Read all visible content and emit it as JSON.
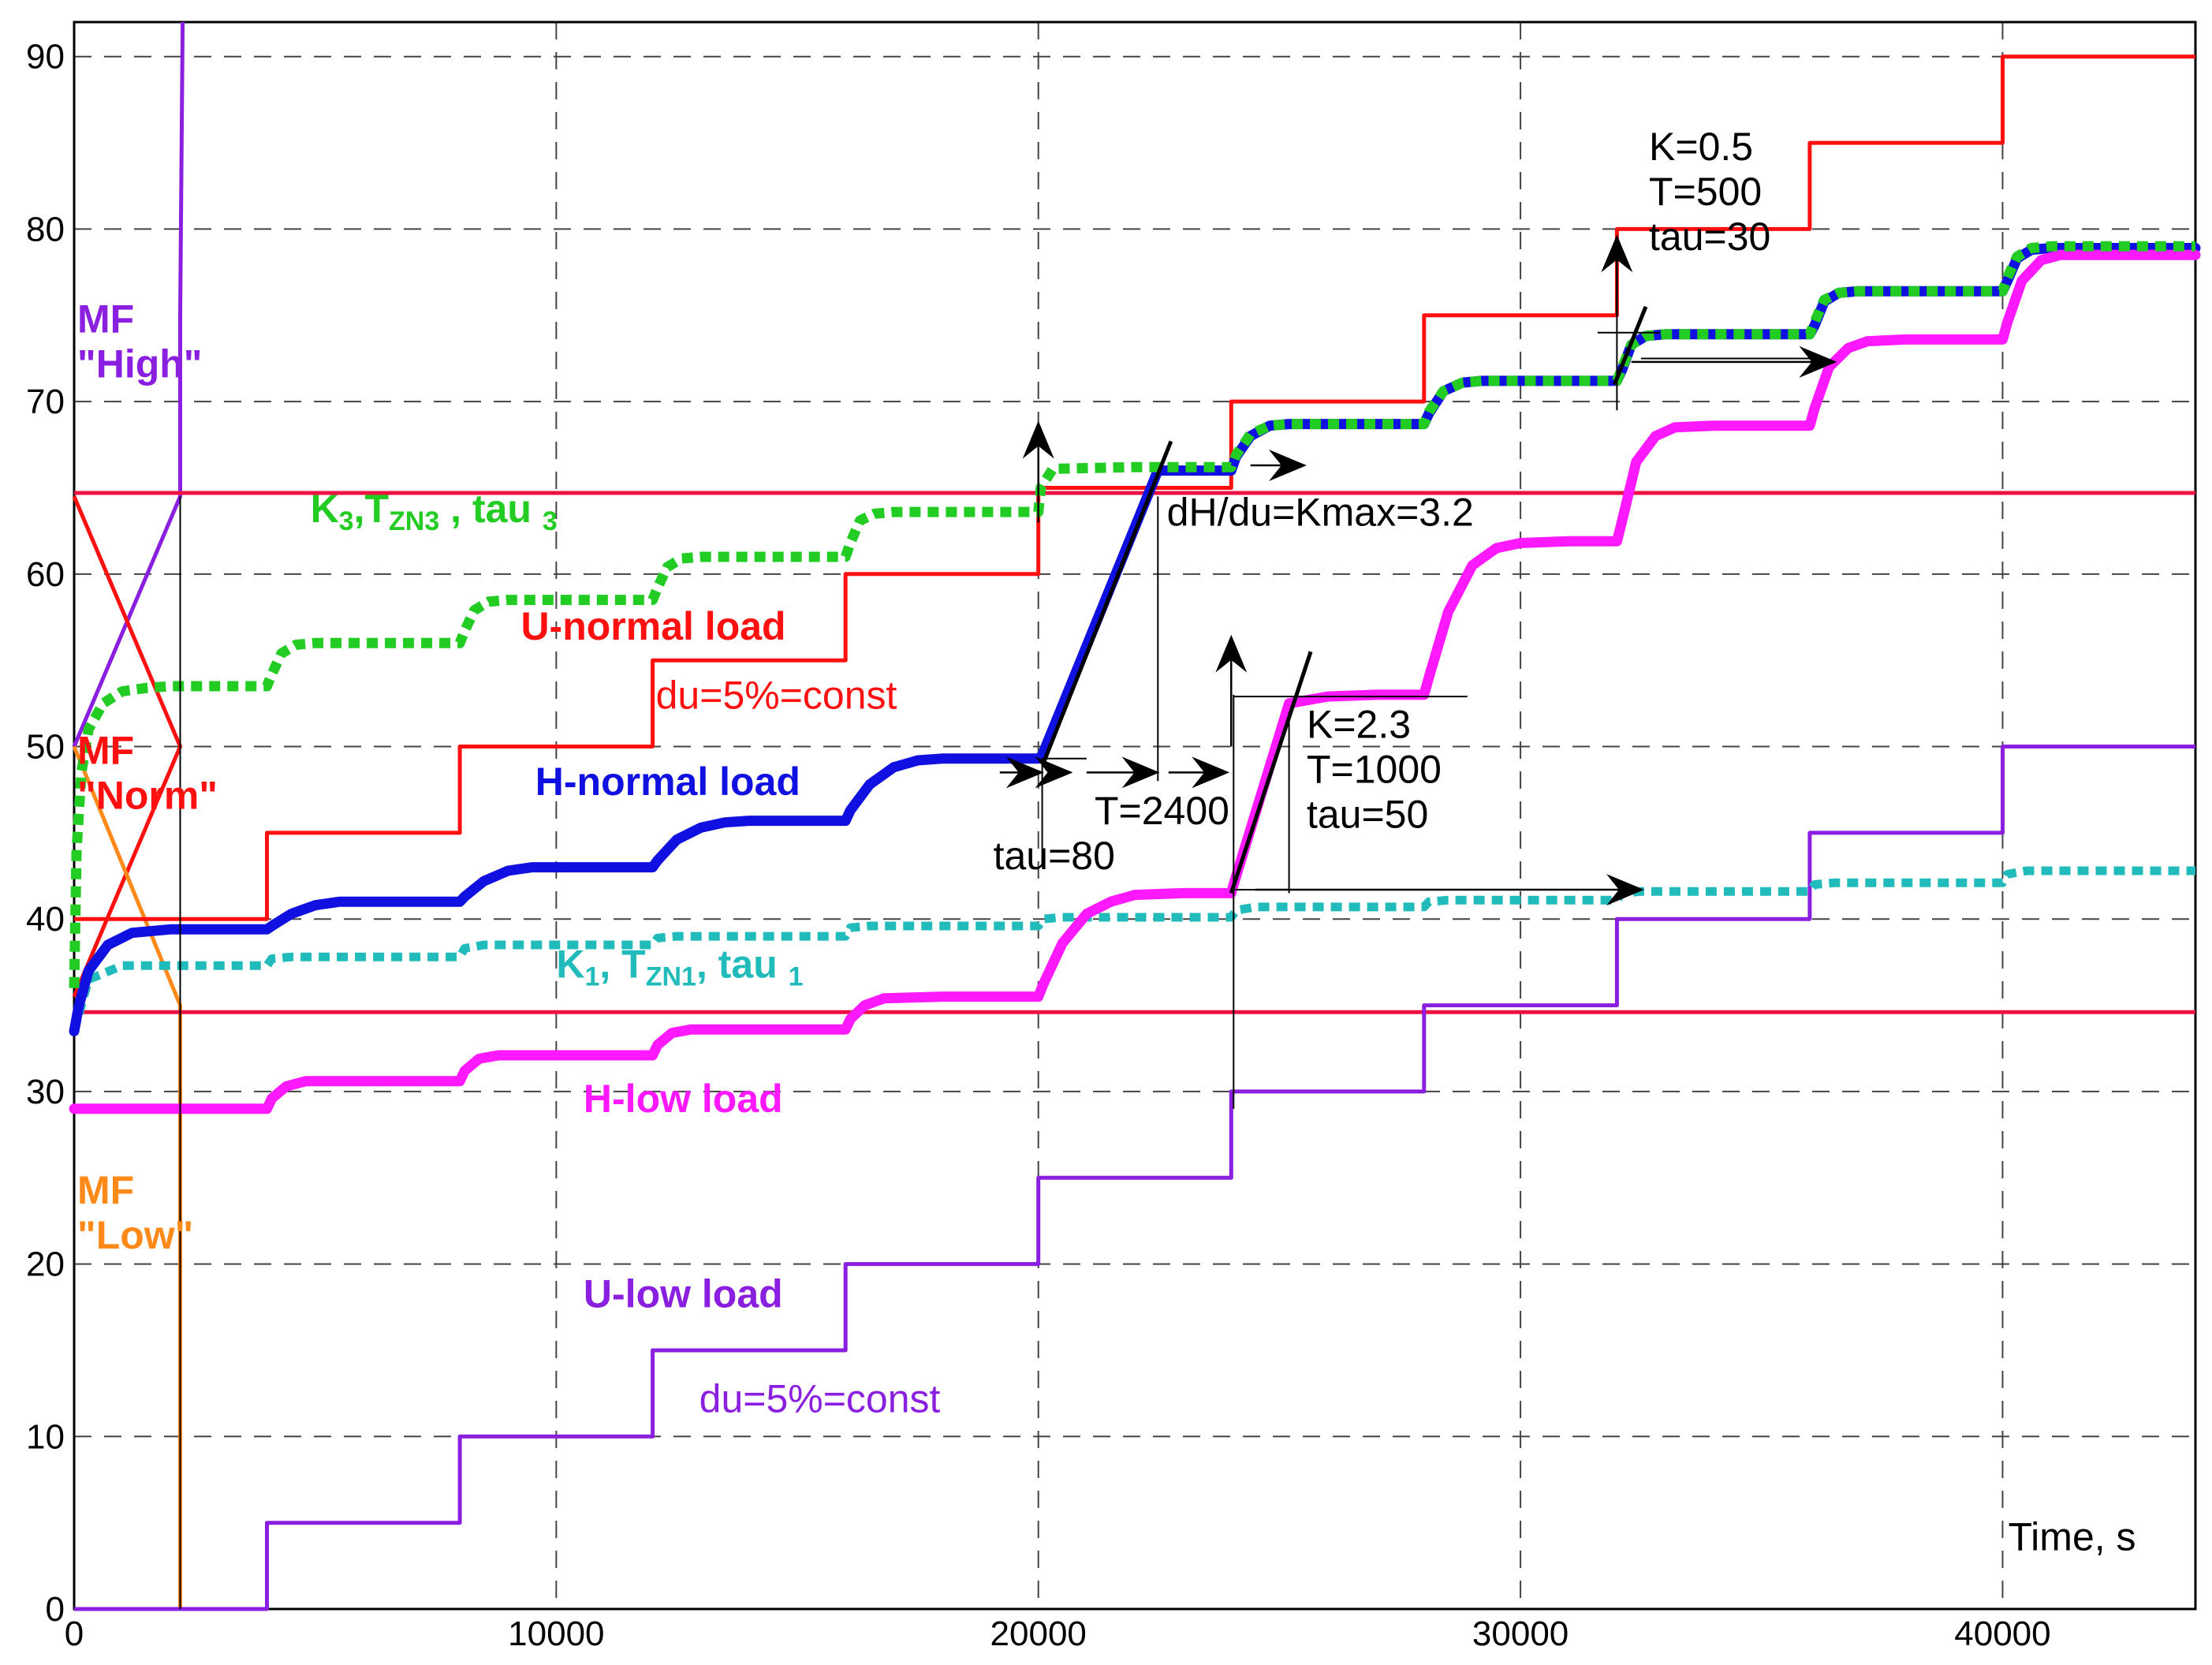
{
  "chart_data": {
    "type": "line",
    "xlabel": "Time, s",
    "xlim": [
      0,
      44000
    ],
    "ylim": [
      0,
      92
    ],
    "x_ticks": [
      0,
      10000,
      20000,
      30000,
      40000
    ],
    "y_ticks": [
      0,
      10,
      20,
      30,
      40,
      50,
      60,
      70,
      80,
      90
    ],
    "grid": true,
    "colors": {
      "u_normal": "#ff1010",
      "h_normal": "#1010e0",
      "u_low": "#8a1fe0",
      "h_low": "#ff19ff",
      "k3": "#22cc22",
      "k1": "#22bbbb",
      "mf_high": "#8a1fe0",
      "mf_norm": "#ff1010",
      "mf_low": "#ff8a1a",
      "hline": "#ee1144",
      "black": "#000000"
    },
    "series": [
      {
        "key": "u_normal",
        "style": "step",
        "x": [
          0,
          4000,
          4000,
          8000,
          8000,
          12000,
          12000,
          16000,
          16000,
          20000,
          20000,
          24000,
          24000,
          28000,
          28000,
          32000,
          32000,
          36000,
          36000,
          40000,
          40000,
          44000
        ],
        "values": [
          40,
          40,
          45,
          45,
          50,
          50,
          55,
          55,
          60,
          60,
          65,
          65,
          70,
          70,
          75,
          75,
          80,
          80,
          85,
          85,
          90,
          90
        ]
      },
      {
        "key": "u_low",
        "style": "step",
        "x": [
          0,
          4000,
          4000,
          8000,
          8000,
          12000,
          12000,
          16000,
          16000,
          20000,
          20000,
          24000,
          24000,
          28000,
          28000,
          32000,
          32000,
          36000,
          36000,
          40000,
          40000,
          44000
        ],
        "values": [
          0,
          0,
          5,
          5,
          10,
          10,
          15,
          15,
          20,
          20,
          25,
          25,
          30,
          30,
          35,
          35,
          40,
          40,
          45,
          45,
          50,
          50
        ]
      },
      {
        "key": "h_normal",
        "style": "thick",
        "x": [
          0,
          100,
          300,
          700,
          1200,
          2000,
          3000,
          4000,
          4100,
          4500,
          5000,
          5500,
          6000,
          7000,
          8000,
          8100,
          8500,
          9000,
          9500,
          10000,
          11000,
          12000,
          12100,
          12500,
          13000,
          13500,
          14000,
          15000,
          16000,
          16100,
          16500,
          17000,
          17500,
          18000,
          19000,
          20000,
          20080,
          22480,
          24000,
          24100,
          24400,
          24800,
          25200,
          26000,
          27000,
          28000,
          28100,
          28400,
          28800,
          29200,
          30000,
          31000,
          32000,
          32100,
          32300,
          32600,
          33000,
          34000,
          35000,
          36000,
          36100,
          36300,
          36600,
          37000,
          38000,
          39000,
          40000,
          40100,
          40300,
          40600,
          41000,
          42000,
          43000,
          44000
        ],
        "values": [
          33.5,
          35,
          37,
          38.5,
          39.2,
          39.4,
          39.4,
          39.4,
          39.6,
          40.3,
          40.8,
          41,
          41,
          41,
          41,
          41.3,
          42.2,
          42.8,
          43,
          43,
          43,
          43,
          43.4,
          44.6,
          45.3,
          45.6,
          45.7,
          45.7,
          45.7,
          46.3,
          47.8,
          48.8,
          49.2,
          49.3,
          49.3,
          49.3,
          49.5,
          66,
          66,
          66.8,
          68,
          68.6,
          68.7,
          68.7,
          68.7,
          68.7,
          69.3,
          70.6,
          71.1,
          71.2,
          71.2,
          71.2,
          71.2,
          71.8,
          73.3,
          73.8,
          73.9,
          73.9,
          73.9,
          73.9,
          74.4,
          75.8,
          76.3,
          76.4,
          76.4,
          76.4,
          76.4,
          77,
          78.3,
          78.8,
          78.9,
          78.9,
          78.9,
          78.9
        ]
      },
      {
        "key": "h_low",
        "style": "thick",
        "x": [
          0,
          4000,
          4100,
          4400,
          4800,
          6000,
          8000,
          8100,
          8400,
          8800,
          10000,
          12000,
          12100,
          12400,
          12800,
          14000,
          16000,
          16100,
          16400,
          16800,
          18000,
          20000,
          20100,
          20500,
          21000,
          21500,
          22000,
          23000,
          24000,
          24050,
          25200,
          26000,
          27000,
          28000,
          28100,
          28500,
          29000,
          29500,
          30000,
          31000,
          32000,
          32100,
          32400,
          32800,
          33200,
          34000,
          35000,
          36000,
          36100,
          36400,
          36800,
          37200,
          38000,
          39000,
          40000,
          40100,
          40400,
          40800,
          41200,
          42000,
          44000
        ],
        "values": [
          29,
          29,
          29.6,
          30.3,
          30.6,
          30.6,
          30.6,
          31.2,
          31.9,
          32.1,
          32.1,
          32.1,
          32.7,
          33.4,
          33.6,
          33.6,
          33.6,
          34.2,
          35,
          35.4,
          35.5,
          35.5,
          36.2,
          38.6,
          40.3,
          41,
          41.4,
          41.5,
          41.5,
          42,
          52.5,
          52.9,
          53,
          53,
          54,
          57.8,
          60.5,
          61.5,
          61.8,
          61.9,
          61.9,
          63,
          66.5,
          68,
          68.5,
          68.6,
          68.6,
          68.6,
          69.6,
          72,
          73.1,
          73.5,
          73.6,
          73.6,
          73.6,
          74.6,
          77,
          78.2,
          78.5,
          78.5,
          78.5
        ]
      },
      {
        "key": "k3",
        "style": "dotted",
        "x": [
          0,
          50,
          150,
          300,
          600,
          1000,
          1500,
          2000,
          3000,
          4000,
          4100,
          4300,
          4600,
          5000,
          6000,
          8000,
          8100,
          8300,
          8600,
          9000,
          10000,
          12000,
          12100,
          12300,
          12600,
          13000,
          14000,
          16000,
          16100,
          16300,
          16600,
          17000,
          18000,
          20000,
          20050,
          20300,
          22000,
          24000,
          24100,
          24400,
          24800,
          25200,
          26000,
          28000,
          28100,
          28400,
          28800,
          29200,
          30000,
          32000,
          32100,
          32300,
          32600,
          33000,
          34000,
          36000,
          36100,
          36300,
          36600,
          37000,
          38000,
          40000,
          40100,
          40300,
          40600,
          41000,
          42000,
          44000
        ],
        "values": [
          36,
          44,
          48.5,
          51,
          52.5,
          53.2,
          53.4,
          53.5,
          53.5,
          53.5,
          54.2,
          55.4,
          55.9,
          56,
          56,
          56,
          56.7,
          57.9,
          58.4,
          58.5,
          58.5,
          58.5,
          59.2,
          60.4,
          60.9,
          61,
          61,
          61,
          61.8,
          63.1,
          63.5,
          63.6,
          63.6,
          63.6,
          65,
          66.1,
          66.2,
          66.2,
          66.9,
          68.1,
          68.6,
          68.7,
          68.7,
          68.7,
          69.4,
          70.6,
          71.1,
          71.2,
          71.2,
          71.2,
          71.9,
          73.3,
          73.8,
          73.9,
          73.9,
          73.9,
          74.6,
          75.9,
          76.3,
          76.4,
          76.4,
          76.4,
          77.2,
          78.4,
          78.9,
          79,
          79,
          79
        ]
      },
      {
        "key": "k1",
        "style": "dotted_cyan",
        "x": [
          0,
          300,
          1000,
          2000,
          4000,
          4100,
          4500,
          6000,
          8000,
          8100,
          8500,
          10000,
          12000,
          12100,
          12500,
          14000,
          16000,
          16100,
          16500,
          18000,
          20000,
          20100,
          20500,
          22000,
          24000,
          24100,
          24500,
          26000,
          28000,
          28100,
          28500,
          30000,
          32000,
          32100,
          32500,
          34000,
          36000,
          36100,
          36500,
          38000,
          40000,
          40100,
          40500,
          42000,
          44000
        ],
        "values": [
          33.5,
          36.5,
          37.3,
          37.3,
          37.3,
          37.7,
          37.8,
          37.8,
          37.8,
          38.3,
          38.5,
          38.5,
          38.5,
          38.9,
          39,
          39,
          39,
          39.5,
          39.6,
          39.6,
          39.6,
          40,
          40.1,
          40.1,
          40.1,
          40.5,
          40.7,
          40.7,
          40.7,
          41,
          41.1,
          41.1,
          41.1,
          41.5,
          41.6,
          41.6,
          41.6,
          42,
          42.1,
          42.1,
          42.1,
          42.6,
          42.8,
          42.8,
          42.8
        ]
      },
      {
        "key": "mf_high",
        "style": "thin",
        "x": [
          0,
          2200,
          2200,
          2250
        ],
        "values": [
          50,
          64.5,
          75,
          92
        ]
      },
      {
        "key": "mf_norm",
        "style": "thin",
        "x": [
          0,
          2200,
          2200,
          0
        ],
        "values": [
          64.5,
          50,
          50,
          35.5
        ]
      },
      {
        "key": "mf_low",
        "style": "thin",
        "x": [
          0,
          2200,
          2200
        ],
        "values": [
          50,
          35,
          0
        ]
      },
      {
        "key": "hline",
        "style": "thin",
        "x": [
          0,
          44000
        ],
        "values": [
          64.7,
          64.7
        ]
      },
      {
        "key": "hline",
        "style": "thin",
        "x": [
          0,
          44000
        ],
        "values": [
          34.6,
          34.6
        ]
      }
    ],
    "helper_lines": [
      {
        "x": [
          2200,
          2200
        ],
        "values": [
          64.5,
          0
        ]
      },
      {
        "x": [
          20080,
          20080
        ],
        "values": [
          49.3,
          43
        ]
      },
      {
        "x": [
          22480,
          22480
        ],
        "values": [
          64.5,
          48
        ]
      },
      {
        "x": [
          20080,
          21000
        ],
        "values": [
          49.3,
          49.3
        ]
      },
      {
        "x": [
          24050,
          24050
        ],
        "values": [
          53,
          29
        ]
      },
      {
        "x": [
          25200,
          25200
        ],
        "values": [
          52,
          41.5
        ]
      },
      {
        "x": [
          24050,
          28900
        ],
        "values": [
          52.9,
          52.9
        ]
      },
      {
        "x": [
          24050,
          26600
        ],
        "values": [
          41.7,
          41.7
        ]
      },
      {
        "x": [
          32000,
          32000
        ],
        "values": [
          76,
          69.5
        ]
      },
      {
        "x": [
          31600,
          32900
        ],
        "values": [
          74,
          74
        ]
      },
      {
        "x": [
          32500,
          36200
        ],
        "values": [
          72.5,
          72.5
        ]
      }
    ],
    "tangent_lines": [
      {
        "x": [
          20100,
          22750
        ],
        "values": [
          49,
          67.7
        ]
      },
      {
        "x": [
          24000,
          25650
        ],
        "values": [
          41.5,
          55.5
        ]
      },
      {
        "x": [
          31950,
          32600
        ],
        "values": [
          71,
          75.5
        ]
      }
    ],
    "arrows": [
      {
        "x": [
          20000,
          20000
        ],
        "values": [
          63,
          68.7
        ]
      },
      {
        "x": [
          24000,
          24000
        ],
        "values": [
          50,
          56.3
        ]
      },
      {
        "x": [
          32000,
          32000
        ],
        "values": [
          75,
          79.5
        ]
      },
      {
        "x": [
          19200,
          20050
        ],
        "values": [
          48.5,
          48.5
        ]
      },
      {
        "x": [
          20200,
          20650
        ],
        "values": [
          48.5,
          48.5
        ]
      },
      {
        "x": [
          21000,
          22450
        ],
        "values": [
          48.5,
          48.5
        ]
      },
      {
        "x": [
          22700,
          23900
        ],
        "values": [
          48.5,
          48.5
        ]
      },
      {
        "x": [
          24400,
          25500
        ],
        "values": [
          66.3,
          66.3
        ]
      },
      {
        "x": [
          24500,
          32500
        ],
        "values": [
          41.7,
          41.7
        ]
      },
      {
        "x": [
          32300,
          36500
        ],
        "values": [
          72.3,
          72.3
        ]
      }
    ],
    "annotations": [
      {
        "lines": [
          "MF",
          "\"High\""
        ],
        "x": 0,
        "y": 74,
        "colorKey": "mf_high",
        "bold": true
      },
      {
        "lines": [
          "MF",
          "\"Norm\""
        ],
        "x": 0,
        "y": 49,
        "colorKey": "mf_norm",
        "bold": true
      },
      {
        "lines": [
          "MF",
          "\"Low\""
        ],
        "x": 0,
        "y": 23.5,
        "colorKey": "mf_low",
        "bold": true
      },
      {
        "lines": [
          "U-normal load"
        ],
        "x": 9200,
        "y": 56.2,
        "colorKey": "u_normal",
        "bold": true
      },
      {
        "lines": [
          "du=5%=const"
        ],
        "x": 12000,
        "y": 52.2,
        "colorKey": "u_normal",
        "bold": false
      },
      {
        "lines": [
          "H-normal load"
        ],
        "x": 9500,
        "y": 47.2,
        "colorKey": "h_normal",
        "bold": true
      },
      {
        "lines": [
          "H-low load"
        ],
        "x": 10500,
        "y": 28.8,
        "colorKey": "h_low",
        "bold": true
      },
      {
        "lines": [
          "U-low load"
        ],
        "x": 10500,
        "y": 17.5,
        "colorKey": "u_low",
        "bold": true
      },
      {
        "lines": [
          "du=5%=const"
        ],
        "x": 12900,
        "y": 11.4,
        "colorKey": "u_low",
        "bold": false
      },
      {
        "lines": [
          "dH/du=Kmax=3.2"
        ],
        "x": 22600,
        "y": 62.8,
        "colorKey": "black",
        "bold": false
      },
      {
        "lines": [
          "T=2400"
        ],
        "x": 21100,
        "y": 45.5,
        "colorKey": "black",
        "bold": false
      },
      {
        "lines": [
          "tau=80"
        ],
        "x": 19000,
        "y": 42.9,
        "colorKey": "black",
        "bold": false
      },
      {
        "lines": [
          "K=2.3",
          "T=1000",
          "tau=50"
        ],
        "x": 25500,
        "y": 50.5,
        "colorKey": "black",
        "bold": false
      },
      {
        "lines": [
          "K=0.5",
          "T=500",
          "tau=30"
        ],
        "x": 32600,
        "y": 84,
        "colorKey": "black",
        "bold": false
      },
      {
        "lines": [
          "Time, s"
        ],
        "x": 40050,
        "y": 3.4,
        "colorKey": "black",
        "bold": false
      }
    ],
    "labels_sub": [
      {
        "key": "k3",
        "x": 4900,
        "y": 63,
        "parts": [
          [
            "K",
            ""
          ],
          [
            "3",
            "sub"
          ],
          [
            ",T",
            ""
          ],
          [
            "ZN3",
            "sub"
          ],
          [
            " , tau ",
            ""
          ],
          [
            "3",
            "sub"
          ]
        ]
      },
      {
        "key": "k1",
        "x": 10000,
        "y": 36.6,
        "parts": [
          [
            "K",
            ""
          ],
          [
            "1",
            "sub"
          ],
          [
            ", T",
            ""
          ],
          [
            "ZN1",
            "sub"
          ],
          [
            ", tau ",
            ""
          ],
          [
            "1",
            "sub"
          ]
        ]
      }
    ]
  }
}
